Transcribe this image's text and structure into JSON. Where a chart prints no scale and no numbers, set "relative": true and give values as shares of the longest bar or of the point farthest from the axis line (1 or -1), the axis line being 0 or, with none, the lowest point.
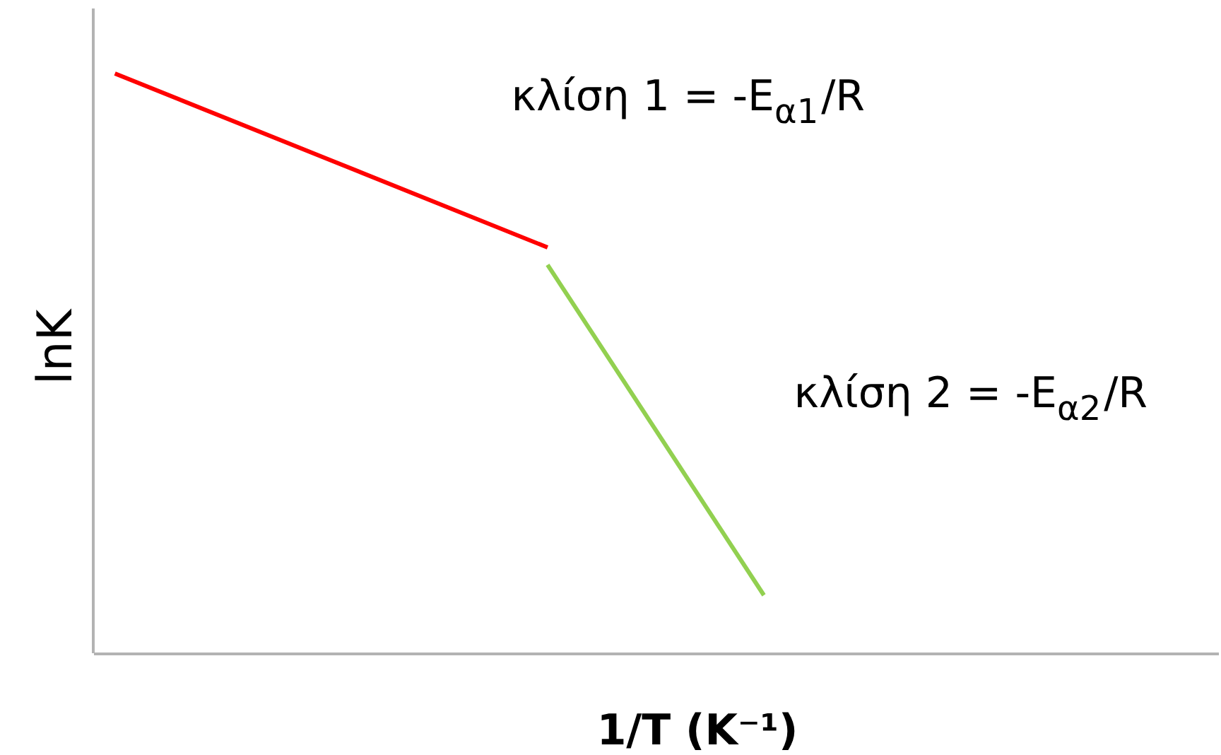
{
  "chart_data": {
    "type": "line",
    "relative": true,
    "xlabel": "1/T (K⁻¹)",
    "ylabel": "lnK",
    "categories": [
      null,
      null,
      null,
      null,
      null,
      null
    ],
    "series": [
      {
        "color": "#ff0000",
        "values": [
          1,
          0.85,
          0.7,
          null,
          null,
          null
        ]
      },
      {
        "color": "#92d050",
        "values": [
          null,
          null,
          0.67,
          0.1,
          null,
          null
        ]
      }
    ],
    "annotations": [
      "κλίση 1 = -E$_{α1}$/R",
      "κλίση 2 = -E$_{α2}$/R"
    ]
  }
}
